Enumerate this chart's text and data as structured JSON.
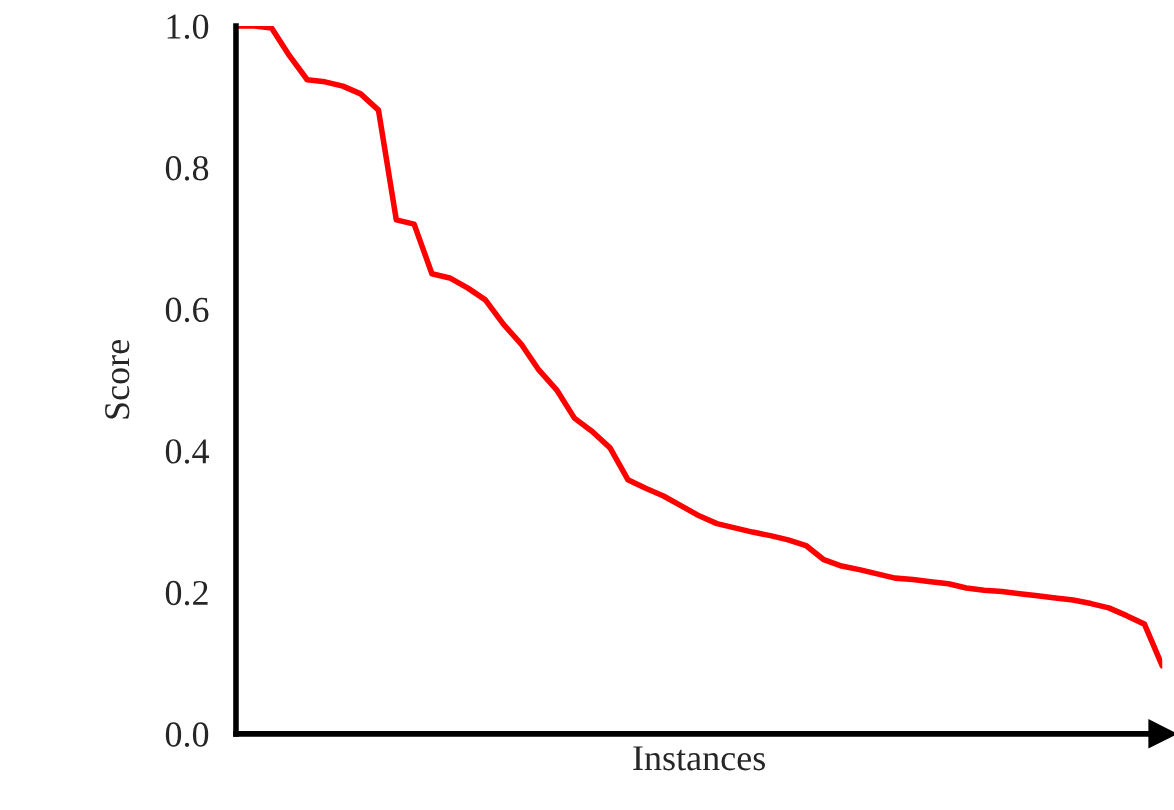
{
  "chart_data": {
    "type": "line",
    "xlabel": "Instances",
    "ylabel": "Score",
    "categories": [
      null,
      null,
      null,
      null,
      null,
      null,
      null,
      null,
      null,
      null,
      null,
      null,
      null,
      null,
      null,
      null,
      null,
      null,
      null,
      null,
      null,
      null,
      null,
      null,
      null,
      null,
      null,
      null,
      null,
      null,
      null,
      null,
      null,
      null,
      null,
      null,
      null,
      null,
      null,
      null,
      null,
      null,
      null,
      null,
      null,
      null,
      null,
      null,
      null,
      null,
      null,
      null,
      null
    ],
    "series": [
      {
        "color": "#ff0000",
        "values": [
          1.0,
          1.0,
          0.997,
          0.958,
          0.924,
          0.921,
          0.915,
          0.904,
          0.881,
          0.726,
          0.72,
          0.65,
          0.644,
          0.63,
          0.613,
          0.579,
          0.551,
          0.514,
          0.486,
          0.446,
          0.427,
          0.404,
          0.359,
          0.347,
          0.336,
          0.322,
          0.308,
          0.297,
          0.291,
          0.285,
          0.28,
          0.274,
          0.266,
          0.246,
          0.237,
          0.232,
          0.226,
          0.22,
          0.218,
          0.215,
          0.212,
          0.206,
          0.203,
          0.201,
          0.198,
          0.195,
          0.192,
          0.189,
          0.184,
          0.178,
          0.167,
          0.155,
          0.096
        ]
      }
    ],
    "ylim": [
      0,
      1
    ],
    "yticks": [
      {
        "value": 0,
        "label": "0.0"
      },
      {
        "value": 0.2,
        "label": "0.2"
      },
      {
        "value": 0.4,
        "label": "0.4"
      },
      {
        "value": 0.6,
        "label": "0.6"
      },
      {
        "value": 0.8,
        "label": "0.8"
      },
      {
        "value": 1,
        "label": "1.0"
      }
    ],
    "grid": false,
    "legend": false,
    "marker": "none",
    "line_style": "solid",
    "tick_labels": "y"
  }
}
